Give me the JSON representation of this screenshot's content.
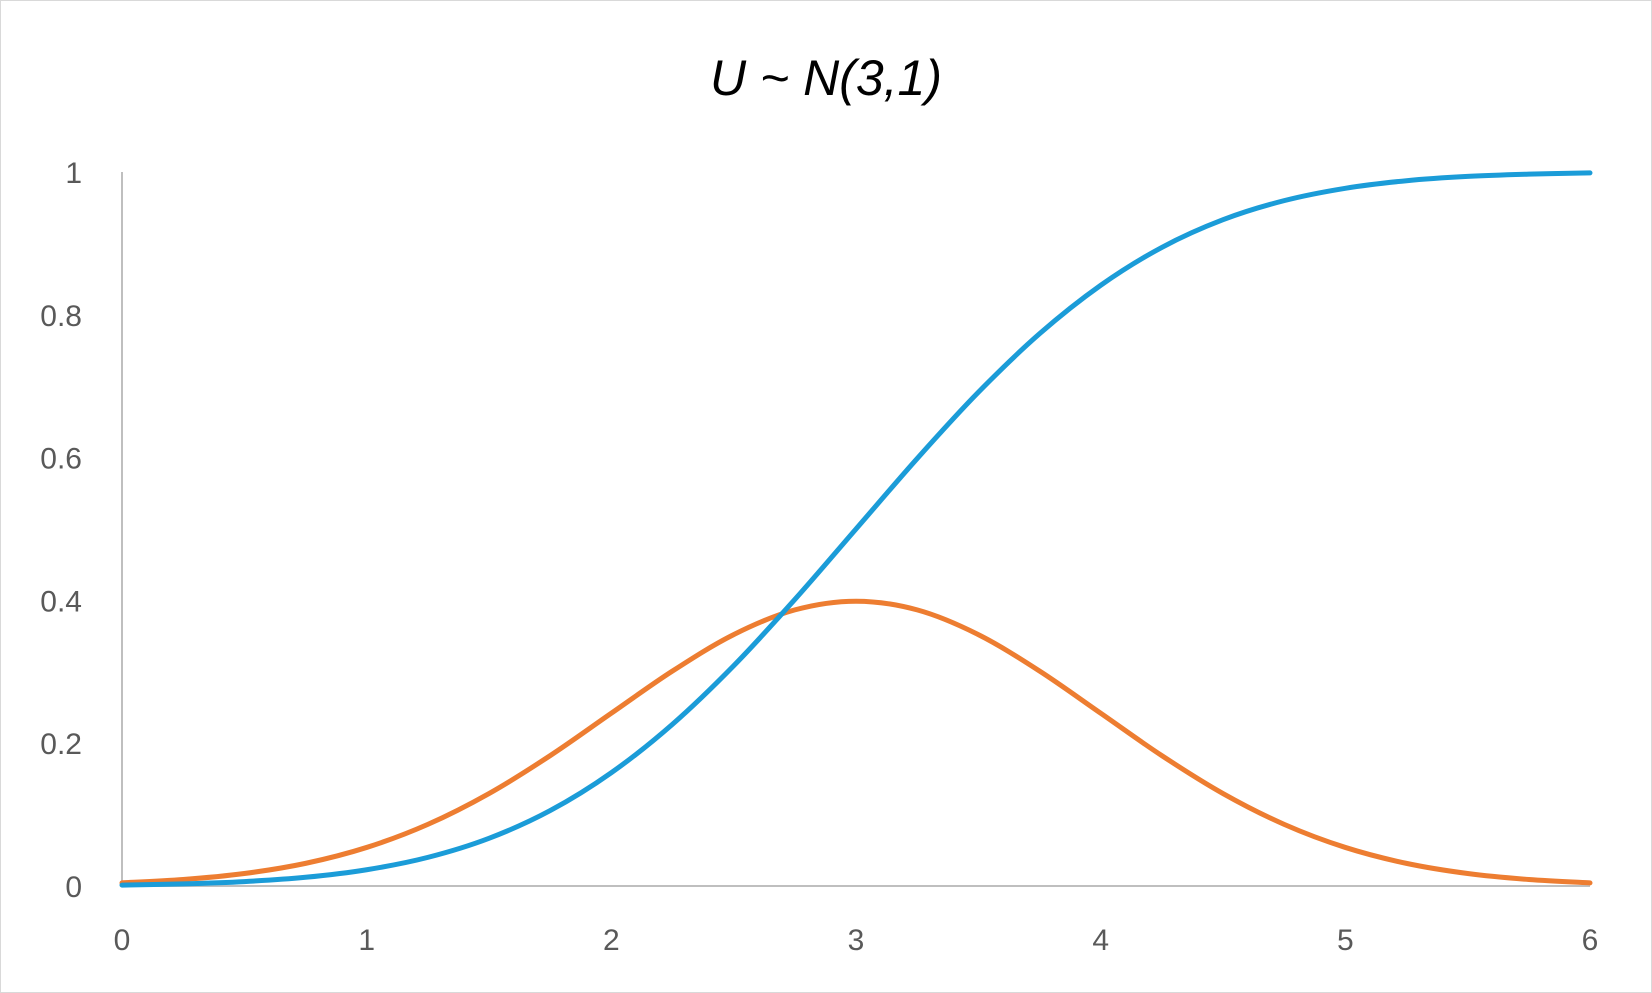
{
  "chart_data": {
    "type": "line",
    "title": "U ~ N(3,1)",
    "xlabel": "",
    "ylabel": "",
    "xlim": [
      0,
      6
    ],
    "ylim": [
      0,
      1
    ],
    "x_ticks": [
      "0",
      "1",
      "2",
      "3",
      "4",
      "5",
      "6"
    ],
    "y_ticks": [
      "0",
      "0.2",
      "0.4",
      "0.6",
      "0.8",
      "1"
    ],
    "grid": false,
    "legend": "none",
    "x": [
      0,
      0.25,
      0.5,
      0.75,
      1,
      1.25,
      1.5,
      1.75,
      2,
      2.25,
      2.5,
      2.75,
      3,
      3.25,
      3.5,
      3.75,
      4,
      4.25,
      4.5,
      4.75,
      5,
      5.25,
      5.5,
      5.75,
      6
    ],
    "series": [
      {
        "color": "#ED7D31",
        "values": [
          0.0044,
          0.0091,
          0.0175,
          0.0317,
          0.054,
          0.0863,
          0.1295,
          0.1826,
          0.242,
          0.3011,
          0.3521,
          0.3867,
          0.3989,
          0.3867,
          0.3521,
          0.3011,
          0.242,
          0.1826,
          0.1295,
          0.0863,
          0.054,
          0.0317,
          0.0175,
          0.0091,
          0.0044
        ]
      },
      {
        "color": "#1B9CD8",
        "values": [
          0.0013,
          0.003,
          0.0062,
          0.0122,
          0.0228,
          0.0401,
          0.0668,
          0.1056,
          0.1587,
          0.2266,
          0.3085,
          0.4013,
          0.5,
          0.5987,
          0.6915,
          0.7734,
          0.8413,
          0.8944,
          0.9332,
          0.9599,
          0.9772,
          0.9878,
          0.9938,
          0.997,
          0.9987
        ]
      }
    ]
  }
}
